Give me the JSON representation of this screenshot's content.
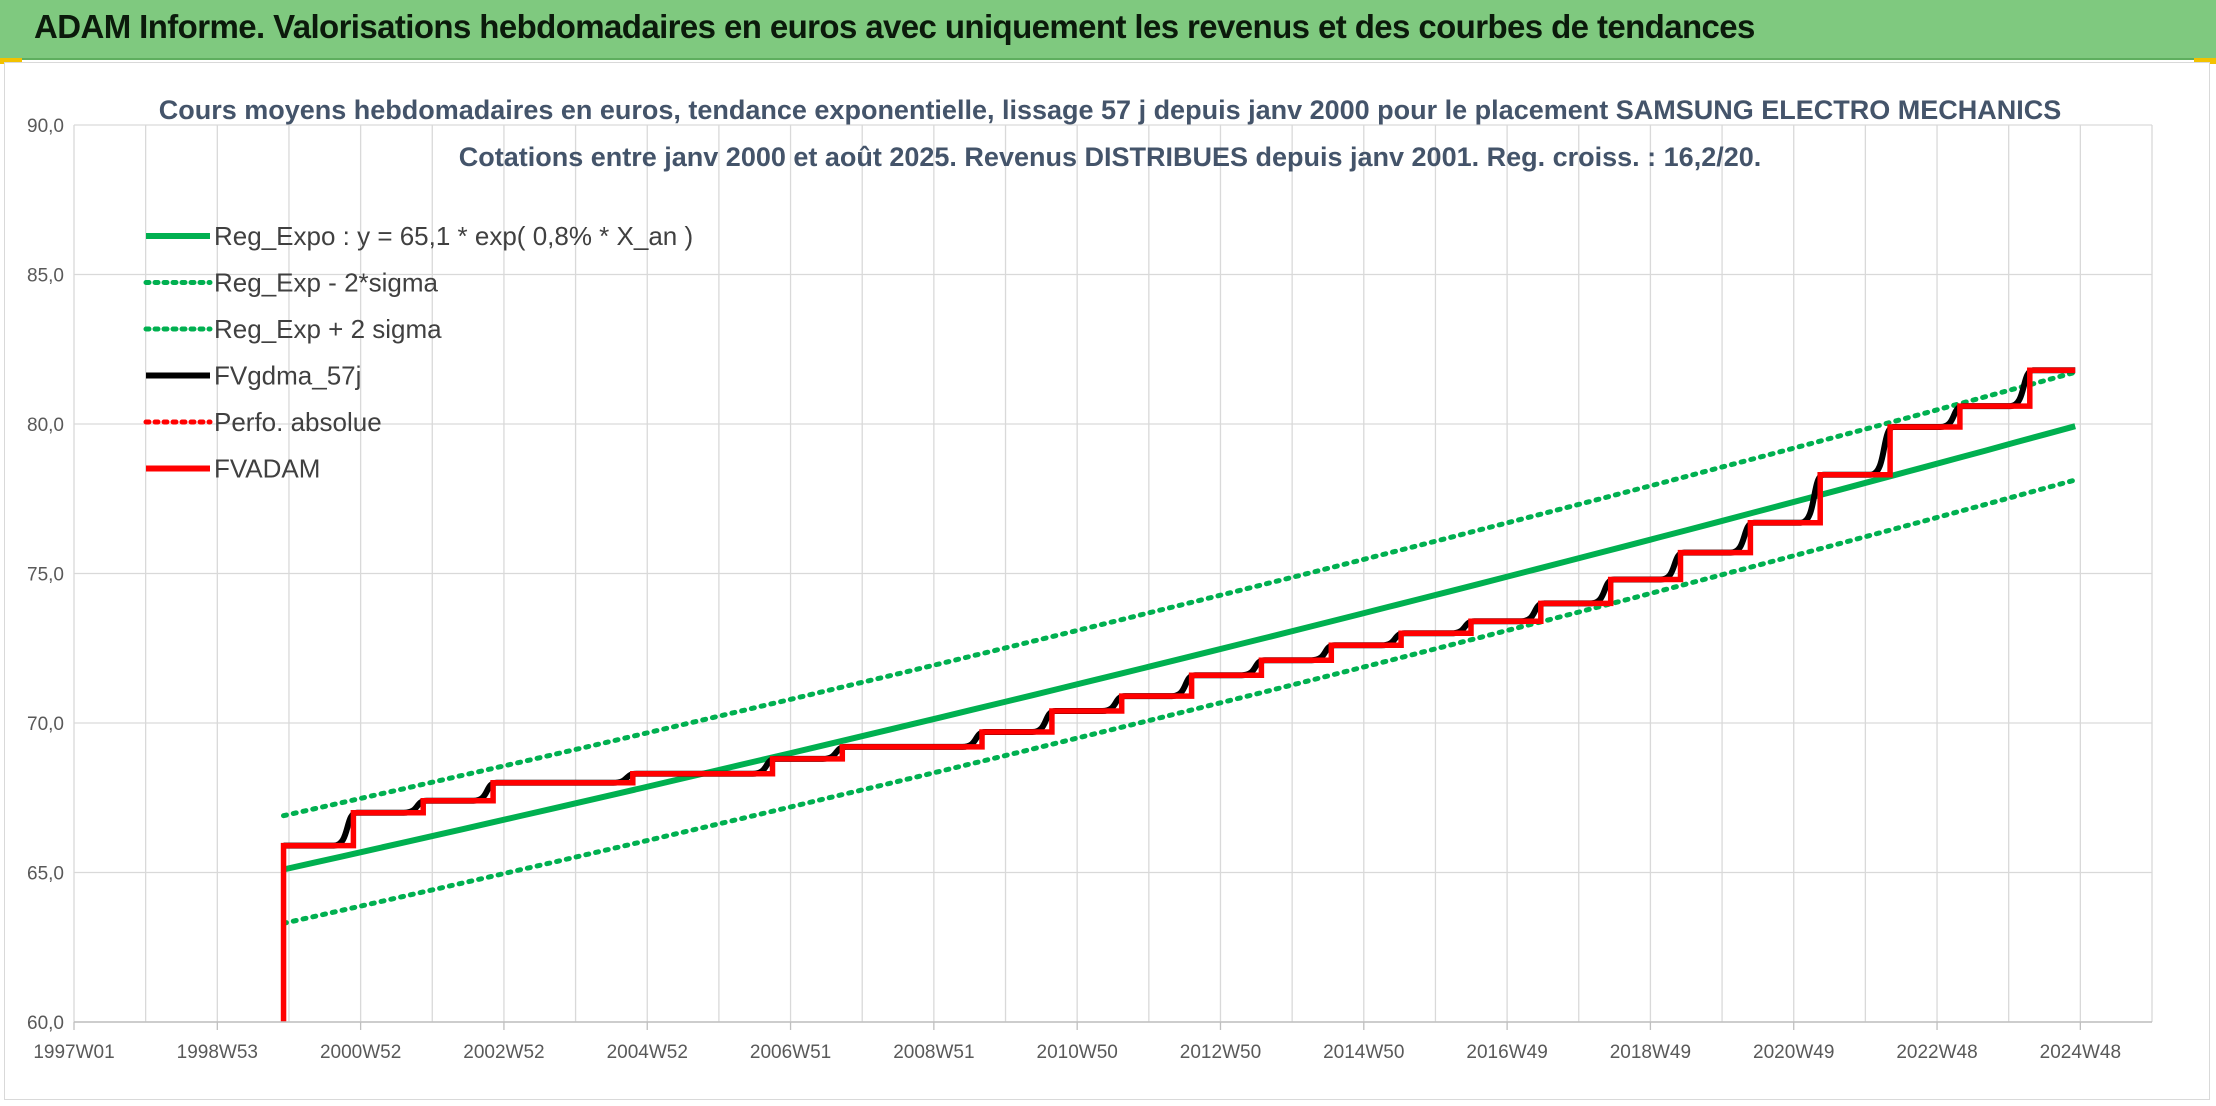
{
  "banner": {
    "title": "ADAM Informe. Valorisations hebdomadaires en euros avec uniquement les revenus et des courbes de tendances"
  },
  "colors": {
    "banner": "#7fc97f",
    "green": "#00b050",
    "red": "#ff0000",
    "black": "#000000",
    "grid": "#d9d9d9"
  },
  "chart_data": {
    "type": "line",
    "title_lines": [
      "Cours moyens hebdomadaires en euros, tendance exponentielle, lissage 57 j depuis janv 2000 pour le placement SAMSUNG ELECTRO MECHANICS",
      "Cotations entre janv 2000 et août 2025. Revenus DISTRIBUES depuis janv 2001. Reg. croiss. : 16,2/20."
    ],
    "ylim": [
      60,
      90
    ],
    "y_ticks": [
      "60,0",
      "65,0",
      "70,0",
      "75,0",
      "80,0",
      "85,0",
      "90,0"
    ],
    "x_tick_labels": [
      "1997W01",
      "1998W53",
      "2000W52",
      "2002W52",
      "2004W52",
      "2006W51",
      "2008W51",
      "2010W50",
      "2012W50",
      "2014W50",
      "2016W49",
      "2018W49",
      "2020W49",
      "2022W48",
      "2024W48"
    ],
    "x_range_years": [
      1997.0,
      2026.75
    ],
    "grid": true,
    "legend_position": "top-left",
    "legend": [
      {
        "label": "Reg_Expo : y = 65,1 * exp( 0,8% *  X_an )",
        "color": "#00b050",
        "style": "solid"
      },
      {
        "label": "Reg_Exp - 2*sigma",
        "color": "#00b050",
        "style": "dotted"
      },
      {
        "label": "Reg_Exp + 2 sigma",
        "color": "#00b050",
        "style": "dotted"
      },
      {
        "label": "FVgdma_57j",
        "color": "#000000",
        "style": "solid"
      },
      {
        "label": "Perfo. absolue",
        "color": "#ff0000",
        "style": "dotted"
      },
      {
        "label": "FVADAM",
        "color": "#ff0000",
        "style": "solid"
      }
    ],
    "regression": {
      "a": 65.1,
      "rate": 0.008,
      "x0_year": 2000.0,
      "x1_year": 2025.65,
      "sigma_offset": 1.8
    },
    "fvadam_steps": [
      {
        "year": 2000.0,
        "value": 65.9
      },
      {
        "year": 2001.0,
        "value": 67.0
      },
      {
        "year": 2002.0,
        "value": 67.4
      },
      {
        "year": 2003.0,
        "value": 68.0
      },
      {
        "year": 2005.0,
        "value": 68.3
      },
      {
        "year": 2007.0,
        "value": 68.8
      },
      {
        "year": 2008.0,
        "value": 69.2
      },
      {
        "year": 2010.0,
        "value": 69.7
      },
      {
        "year": 2011.0,
        "value": 70.4
      },
      {
        "year": 2012.0,
        "value": 70.9
      },
      {
        "year": 2013.0,
        "value": 71.6
      },
      {
        "year": 2014.0,
        "value": 72.1
      },
      {
        "year": 2015.0,
        "value": 72.6
      },
      {
        "year": 2016.0,
        "value": 73.0
      },
      {
        "year": 2017.0,
        "value": 73.4
      },
      {
        "year": 2018.0,
        "value": 74.0
      },
      {
        "year": 2019.0,
        "value": 74.8
      },
      {
        "year": 2020.0,
        "value": 75.7
      },
      {
        "year": 2021.0,
        "value": 76.7
      },
      {
        "year": 2022.0,
        "value": 78.3
      },
      {
        "year": 2023.0,
        "value": 79.9
      },
      {
        "year": 2024.0,
        "value": 80.6
      },
      {
        "year": 2025.0,
        "value": 81.8
      }
    ],
    "fvadam_end_year": 2025.65,
    "fvadam_start_value": 60.0
  }
}
